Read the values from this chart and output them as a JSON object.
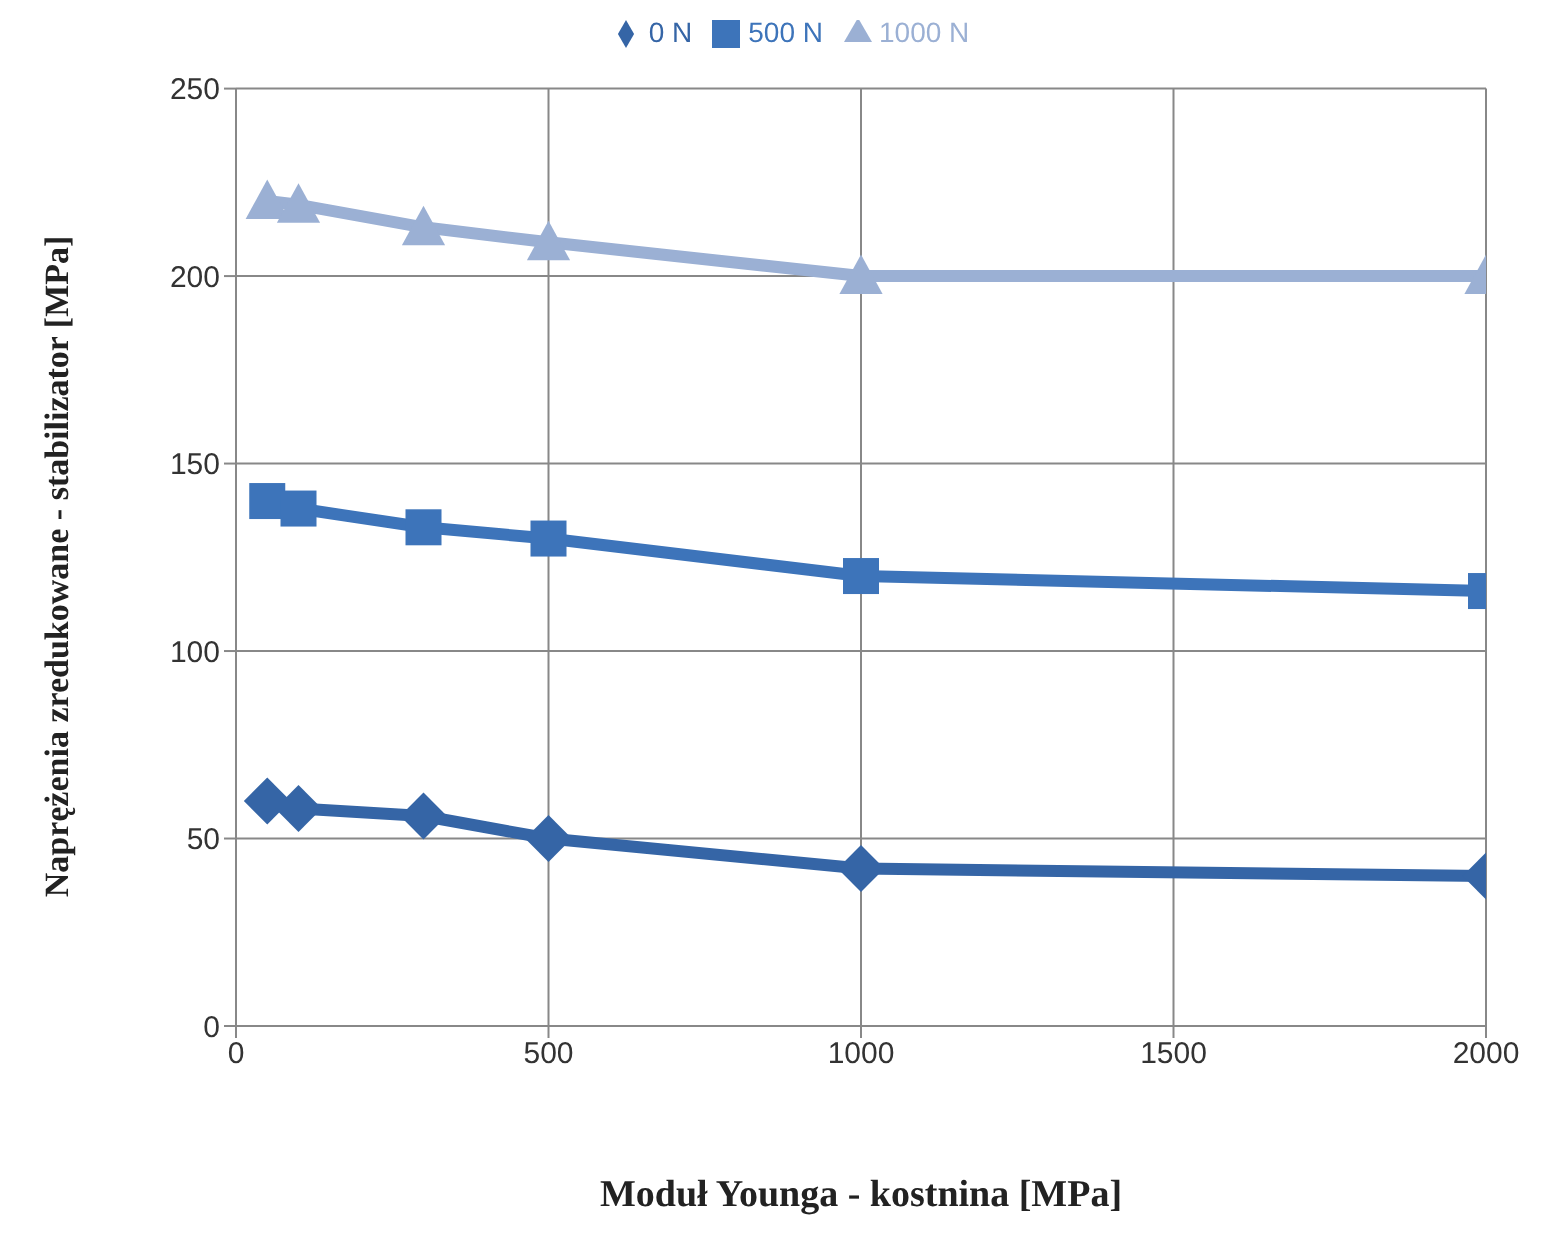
{
  "chart_data": {
    "type": "line",
    "xlabel": "Moduł Younga - kostnina [MPa]",
    "ylabel": "Naprężenia zredukowane - stabilizator [MPa]",
    "x": [
      50,
      100,
      300,
      500,
      1000,
      2000
    ],
    "series": [
      {
        "name": "0 N",
        "color": "#3565a6",
        "values": [
          60,
          58,
          56,
          50,
          42,
          40
        ],
        "marker": "diamond"
      },
      {
        "name": "500 N",
        "color": "#3d74ba",
        "values": [
          140,
          138,
          133,
          130,
          120,
          116
        ],
        "marker": "square"
      },
      {
        "name": "1000 N",
        "color": "#9bb0d4",
        "values": [
          220,
          219,
          213,
          209,
          200,
          200
        ],
        "marker": "triangle"
      }
    ],
    "xlim": [
      0,
      2000
    ],
    "xticks": [
      0,
      500,
      1000,
      1500,
      2000
    ],
    "ylim": [
      0,
      250
    ],
    "yticks": [
      0,
      50,
      100,
      150,
      200,
      250
    ],
    "grid": true,
    "legend": "top",
    "line_style": "solid"
  }
}
